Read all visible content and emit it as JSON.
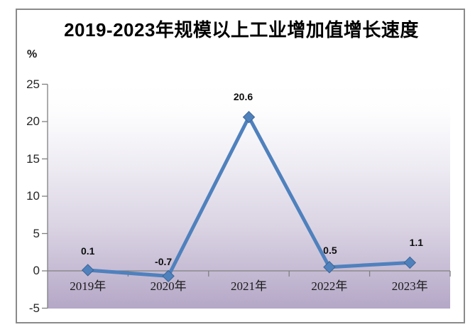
{
  "chart": {
    "title": "2019-2023年规模以上工业增加值增长速度",
    "unit_label": "%",
    "chart_data": {
      "type": "line",
      "title": "2019-2023年规模以上工业增加值增长速度",
      "categories": [
        "2019年",
        "2020年",
        "2021年",
        "2022年",
        "2023年"
      ],
      "values": [
        0.1,
        -0.7,
        20.6,
        0.5,
        1.1
      ],
      "data_labels": [
        "0.1",
        "-0.7",
        "20.6",
        "0.5",
        "1.1"
      ],
      "xlabel": "",
      "ylabel": "%",
      "ylim": [
        -5,
        25
      ],
      "yticks": [
        -5,
        0,
        5,
        10,
        15,
        20,
        25
      ],
      "ytick_labels": [
        "-5",
        "0",
        "5",
        "10",
        "15",
        "20",
        "25"
      ],
      "grid": false,
      "legend": "none",
      "marker": "diamond"
    },
    "colors": {
      "line": "#4F81BD",
      "marker_fill": "#4F81BD",
      "marker_stroke": "#3C6494",
      "axis": "#7F7F7F",
      "frame_border": "#8A8A8A",
      "plot_gradient_top": "#FFFFFF",
      "plot_gradient_bottom": "#B4A7C7",
      "title_text": "#000000",
      "label_text": "#0D0D0D"
    }
  }
}
